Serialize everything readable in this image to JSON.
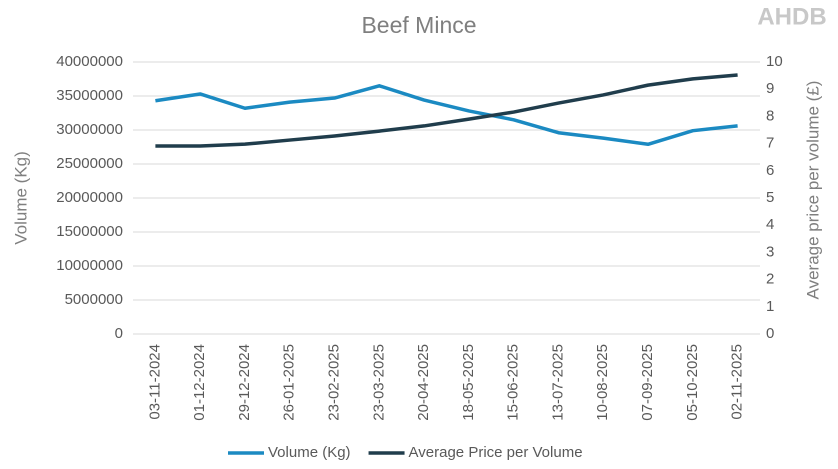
{
  "logo": "AHDB",
  "chart_data": {
    "type": "line",
    "title": "Beef Mince",
    "y_label": "Volume (Kg)",
    "y2_label": "Average price per volume (£)",
    "categories": [
      "03-11-2024",
      "01-12-2024",
      "29-12-2024",
      "26-01-2025",
      "23-02-2025",
      "23-03-2025",
      "20-04-2025",
      "18-05-2025",
      "15-06-2025",
      "13-07-2025",
      "10-08-2025",
      "07-09-2025",
      "05-10-2025",
      "02-11-2025"
    ],
    "series": [
      {
        "name": "Volume (Kg)",
        "color": "#1b8ac2",
        "axis": "y",
        "values": [
          34300000,
          35300000,
          33200000,
          34100000,
          34700000,
          36500000,
          34400000,
          32800000,
          31500000,
          29600000,
          28800000,
          27900000,
          29900000,
          30600000
        ]
      },
      {
        "name": "Average Price per Volume",
        "color": "#203d4c",
        "axis": "y2",
        "values": [
          6.91,
          6.91,
          6.98,
          7.13,
          7.28,
          7.46,
          7.65,
          7.9,
          8.16,
          8.49,
          8.79,
          9.15,
          9.38,
          9.52
        ]
      }
    ],
    "ylim": [
      0,
      40000000
    ],
    "yticks": [
      0,
      5000000,
      10000000,
      15000000,
      20000000,
      25000000,
      30000000,
      35000000,
      40000000
    ],
    "y2lim": [
      0,
      10
    ],
    "y2ticks": [
      0,
      1,
      2,
      3,
      4,
      5,
      6,
      7,
      8,
      9,
      10
    ],
    "grid": true,
    "legend": "bottom"
  }
}
